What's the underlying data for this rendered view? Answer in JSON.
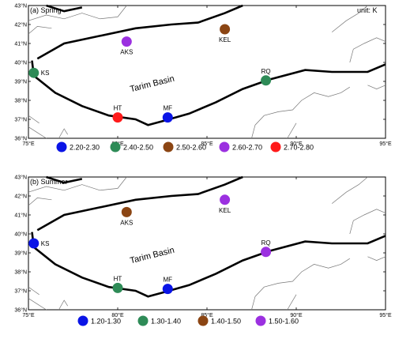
{
  "unit_label": "unit: K",
  "basin_label": "Tarim Basin",
  "x_ticks": [
    "75°E",
    "80°E",
    "85°E",
    "90°E",
    "95°E"
  ],
  "y_ticks": [
    "36°N",
    "37°N",
    "38°N",
    "39°N",
    "40°N",
    "41°N",
    "42°N",
    "43°N"
  ],
  "panels": [
    {
      "title": "(a) Spring",
      "stations": [
        {
          "name": "KS",
          "lon": 75.3,
          "lat": 39.45,
          "bin": 1
        },
        {
          "name": "AKS",
          "lon": 80.5,
          "lat": 41.1,
          "bin": 3
        },
        {
          "name": "KEL",
          "lon": 86.0,
          "lat": 41.75,
          "bin": 2
        },
        {
          "name": "RQ",
          "lon": 88.3,
          "lat": 39.05,
          "bin": 1
        },
        {
          "name": "HT",
          "lon": 80.0,
          "lat": 37.1,
          "bin": 4
        },
        {
          "name": "MF",
          "lon": 82.8,
          "lat": 37.1,
          "bin": 0
        }
      ],
      "legend": [
        {
          "label": "2.20-2.30",
          "color": "#0a14e6"
        },
        {
          "label": "2.40-2.50",
          "color": "#2e8b57"
        },
        {
          "label": "2.50-2.60",
          "color": "#8b4513"
        },
        {
          "label": "2.60-2.70",
          "color": "#9b30e0"
        },
        {
          "label": "2.70-2.80",
          "color": "#ff1a1a"
        }
      ]
    },
    {
      "title": "(b) Summer",
      "stations": [
        {
          "name": "KS",
          "lon": 75.3,
          "lat": 39.5,
          "bin": 0
        },
        {
          "name": "AKS",
          "lon": 80.5,
          "lat": 41.15,
          "bin": 2
        },
        {
          "name": "KEL",
          "lon": 86.0,
          "lat": 41.8,
          "bin": 3
        },
        {
          "name": "RQ",
          "lon": 88.3,
          "lat": 39.05,
          "bin": 3
        },
        {
          "name": "HT",
          "lon": 80.0,
          "lat": 37.15,
          "bin": 1
        },
        {
          "name": "MF",
          "lon": 82.8,
          "lat": 37.1,
          "bin": 0
        }
      ],
      "legend": [
        {
          "label": "1.20-1.30",
          "color": "#0a14e6"
        },
        {
          "label": "1.30-1.40",
          "color": "#2e8b57"
        },
        {
          "label": "1.40-1.50",
          "color": "#8b4513"
        },
        {
          "label": "1.50-1.60",
          "color": "#9b30e0"
        }
      ]
    }
  ]
}
